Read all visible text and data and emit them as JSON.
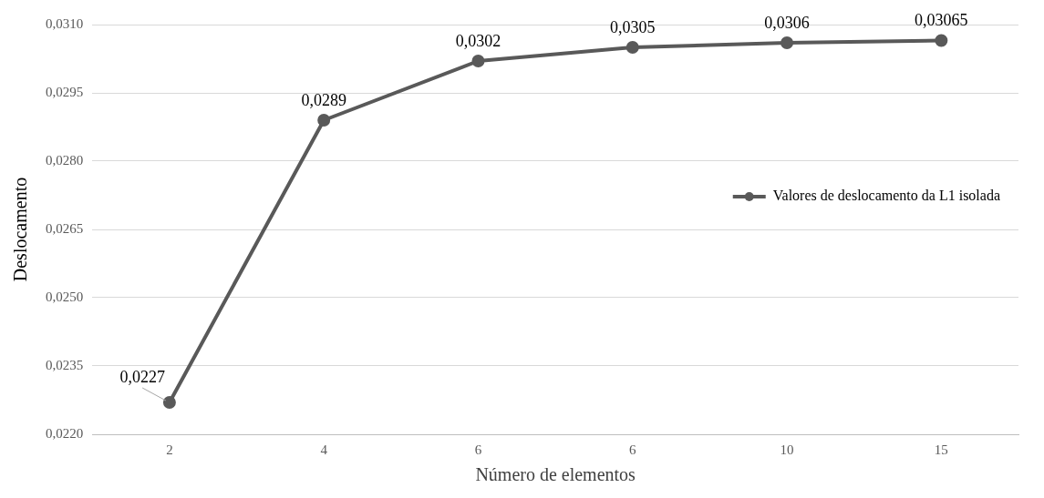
{
  "chart_data": {
    "type": "line",
    "xlabel": "Número de elementos",
    "ylabel": "Deslocamento",
    "categories": [
      "2",
      "4",
      "6",
      "6",
      "10",
      "15"
    ],
    "series": [
      {
        "name": "Valores de deslocamento da L1 isolada",
        "color": "#595959",
        "values": [
          0.0227,
          0.0289,
          0.0302,
          0.0305,
          0.0306,
          0.03065
        ],
        "value_labels": [
          "0,0227",
          "0,0289",
          "0,0302",
          "0,0305",
          "0,0306",
          "0,03065"
        ]
      }
    ],
    "ylim": [
      0.022,
      0.031
    ],
    "yticks": [
      {
        "value": 0.022,
        "label": "0,0220"
      },
      {
        "value": 0.0235,
        "label": "0,0235"
      },
      {
        "value": 0.025,
        "label": "0,0250"
      },
      {
        "value": 0.0265,
        "label": "0,0265"
      },
      {
        "value": 0.028,
        "label": "0,0280"
      },
      {
        "value": 0.0295,
        "label": "0,0295"
      },
      {
        "value": 0.031,
        "label": "0,0310"
      }
    ],
    "grid": "y",
    "legend": "right",
    "marker": "circle",
    "line_style": "solid"
  }
}
